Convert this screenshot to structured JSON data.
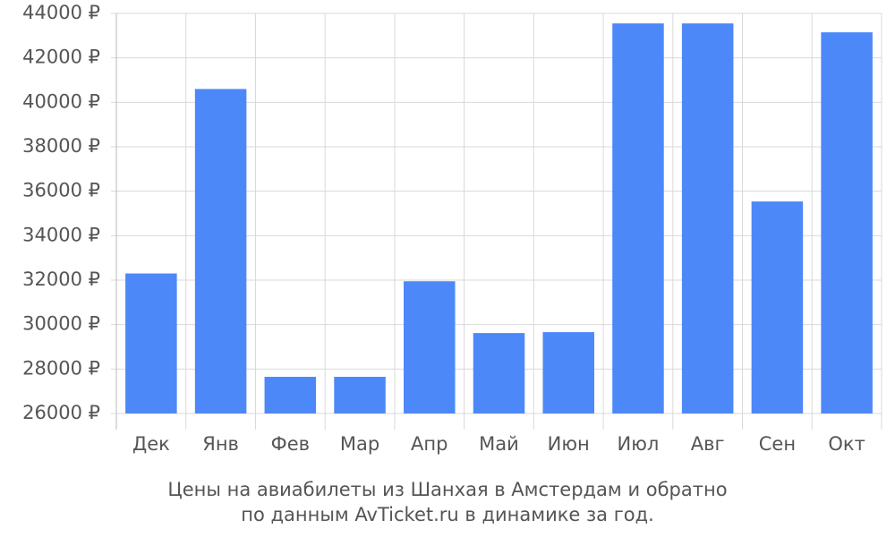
{
  "chart_data": {
    "type": "bar",
    "title": [
      "Цены на авиабилеты из Шанхая в Амстердам и обратно",
      "по данным AvTicket.ru в динамике за год."
    ],
    "categories": [
      "Дек",
      "Янв",
      "Фев",
      "Мар",
      "Апр",
      "Май",
      "Июн",
      "Июл",
      "Авг",
      "Сен",
      "Окт"
    ],
    "values": [
      32300,
      40600,
      27650,
      27650,
      31950,
      29620,
      29660,
      43550,
      43550,
      35540,
      43150
    ],
    "color": "#4d88f9",
    "ylim": [
      26000,
      44000
    ],
    "yticks": [
      {
        "value": 26000,
        "label": "26000 ₽"
      },
      {
        "value": 28000,
        "label": "28000 ₽"
      },
      {
        "value": 30000,
        "label": "30000 ₽"
      },
      {
        "value": 32000,
        "label": "32000 ₽"
      },
      {
        "value": 34000,
        "label": "34000 ₽"
      },
      {
        "value": 36000,
        "label": "36000 ₽"
      },
      {
        "value": 38000,
        "label": "38000 ₽"
      },
      {
        "value": 40000,
        "label": "40000 ₽"
      },
      {
        "value": 42000,
        "label": "42000 ₽"
      },
      {
        "value": 44000,
        "label": "44000 ₽"
      }
    ],
    "grid": true
  }
}
